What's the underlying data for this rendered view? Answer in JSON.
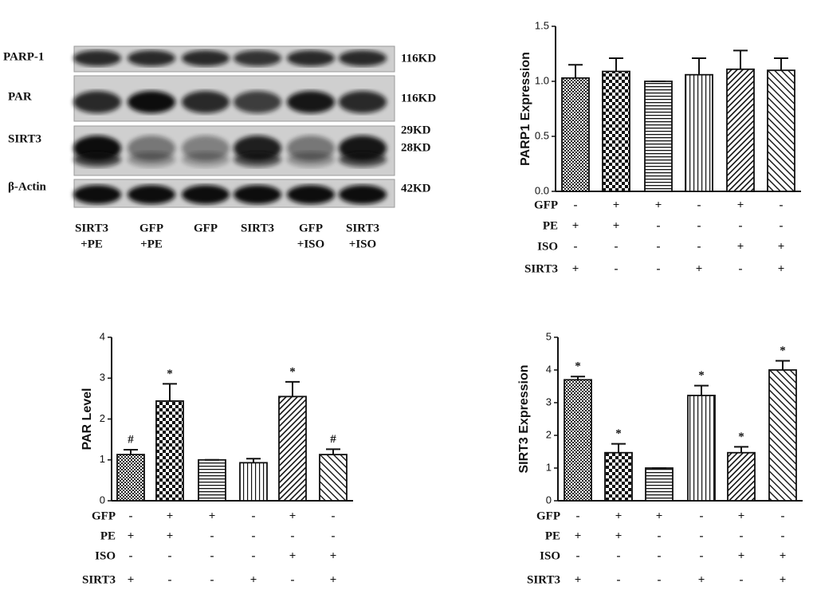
{
  "blot": {
    "rows": [
      {
        "label": "PARP-1",
        "sizes": [
          "116KD"
        ]
      },
      {
        "label": "PAR",
        "sizes": [
          "116KD"
        ]
      },
      {
        "label": "SIRT3",
        "sizes": [
          "29KD",
          "28KD"
        ]
      },
      {
        "label": "β-Actin",
        "sizes": [
          "42KD"
        ]
      }
    ],
    "lanes": [
      [
        "SIRT3",
        "+PE"
      ],
      [
        "GFP",
        "+PE"
      ],
      [
        "GFP"
      ],
      [
        "SIRT3"
      ],
      [
        "GFP",
        "+ISO"
      ],
      [
        "SIRT3",
        "+ISO"
      ]
    ]
  },
  "chart_data": [
    {
      "type": "bar",
      "y_label": "PARP1 Expression",
      "values": [
        1.03,
        1.09,
        1.0,
        1.06,
        1.11,
        1.1
      ],
      "errors": [
        0.12,
        0.12,
        0,
        0.15,
        0.17,
        0.11
      ],
      "ylim": [
        0,
        1.5
      ],
      "yticks": [
        {
          "value": 0,
          "label": "0.0"
        },
        0.5,
        {
          "value": 1,
          "label": "1.0"
        },
        1.5
      ],
      "conditions": [
        {
          "name": "GFP",
          "marks": [
            "-",
            "+",
            "+",
            "-",
            "+",
            "-"
          ]
        },
        {
          "name": "PE",
          "marks": [
            "+",
            "+",
            "-",
            "-",
            "-",
            "-"
          ]
        },
        {
          "name": "ISO",
          "marks": [
            "-",
            "-",
            "-",
            "-",
            "+",
            "+"
          ]
        },
        {
          "name": "SIRT3",
          "marks": [
            "+",
            "-",
            "-",
            "+",
            "-",
            "+"
          ]
        }
      ]
    },
    {
      "type": "bar",
      "y_label": "PAR Level",
      "values": [
        1.13,
        2.44,
        1.0,
        0.93,
        2.55,
        1.13
      ],
      "errors": [
        0.12,
        0.42,
        0,
        0.1,
        0.36,
        0.13
      ],
      "annotations": [
        "#",
        "*",
        null,
        null,
        "*",
        "#"
      ],
      "ylim": [
        0,
        4
      ],
      "yticks": [
        0,
        1,
        2,
        3,
        4
      ],
      "conditions": [
        {
          "name": "GFP",
          "marks": [
            "-",
            "+",
            "+",
            "-",
            "+",
            "-"
          ]
        },
        {
          "name": "PE",
          "marks": [
            "+",
            "+",
            "-",
            "-",
            "-",
            "-"
          ]
        },
        {
          "name": "ISO",
          "marks": [
            "-",
            "-",
            "-",
            "-",
            "+",
            "+"
          ]
        },
        {
          "name": "SIRT3",
          "marks": [
            "+",
            "-",
            "-",
            "+",
            "-",
            "+"
          ]
        }
      ]
    },
    {
      "type": "bar",
      "y_label": "SIRT3 Expression",
      "values": [
        3.7,
        1.47,
        1.0,
        3.22,
        1.47,
        4.0
      ],
      "errors": [
        0.1,
        0.27,
        0,
        0.3,
        0.18,
        0.28
      ],
      "annotations": [
        "*",
        "*",
        null,
        "*",
        "*",
        "*"
      ],
      "ylim": [
        0,
        5
      ],
      "yticks": [
        0,
        1,
        2,
        3,
        4,
        5
      ],
      "conditions": [
        {
          "name": "GFP",
          "marks": [
            "-",
            "+",
            "+",
            "-",
            "+",
            "-"
          ]
        },
        {
          "name": "PE",
          "marks": [
            "+",
            "+",
            "-",
            "-",
            "-",
            "-"
          ]
        },
        {
          "name": "ISO",
          "marks": [
            "-",
            "-",
            "-",
            "-",
            "+",
            "+"
          ]
        },
        {
          "name": "SIRT3",
          "marks": [
            "+",
            "-",
            "-",
            "+",
            "-",
            "+"
          ]
        }
      ]
    }
  ]
}
